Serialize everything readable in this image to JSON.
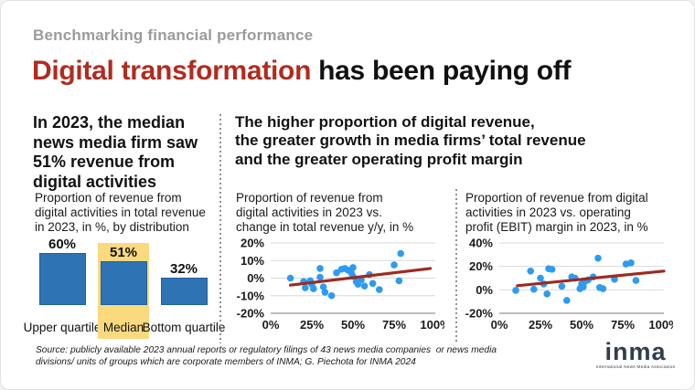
{
  "page": {
    "kicker": "Benchmarking financial performance",
    "title_highlight": "Digital transformation",
    "title_rest": " has been paying off",
    "source": "Source: publicly available 2023 annual reports or regulatory filings of 43 news media companies  or news media\ndivisions/ units of groups which are corporate members of INMA; G. Piechota for INMA 2024"
  },
  "left_panel": {
    "heading": "In 2023, the median\nnews media firm saw\n51% revenue from\ndigital activities",
    "chart_title": "Proportion of revenue from\ndigital activities in total revenue\nin 2023, in %, by distribution"
  },
  "right_panel": {
    "heading": "The higher proportion of digital revenue,\nthe greater growth in media firms’ total revenue\nand the greater operating profit margin",
    "middle_chart_title": "Proportion of revenue from\ndigital activities in 2023 vs.\nchange in total revenue y/y, in %",
    "right_chart_title": "Proportion of revenue from digital\nactivities in 2023 vs. operating\nprofit (EBIT) margin in 2023, in %"
  },
  "logo": {
    "name": "inma",
    "tagline": "International News Media Association"
  },
  "colors": {
    "title_accent": "#b22b1f",
    "kicker_gray": "#9b9b9b",
    "bar_fill": "#2e74b5",
    "bar_border": "#1e5fa3",
    "highlight_yellow": "#fbd97e",
    "dot_blue": "#2d9bf0",
    "trend_red": "#9e2a20",
    "grid_gray": "#d9d9d9",
    "axis_gray": "#a6a6a6",
    "logo_navy": "#333d4d"
  },
  "chart_data": [
    {
      "type": "bar",
      "title": "Proportion of revenue from digital activities in total revenue in 2023, in %, by distribution",
      "categories": [
        "Upper quartile",
        "Median",
        "Bottom quartile"
      ],
      "values": [
        60,
        51,
        32
      ],
      "value_labels": [
        "60%",
        "51%",
        "32%"
      ],
      "highlight_category": "Median",
      "ylim": [
        0,
        65
      ]
    },
    {
      "type": "scatter",
      "title": "Proportion of revenue from digital activities in 2023 vs. change in total revenue y/y, in %",
      "xlim": [
        0,
        100
      ],
      "ylim": [
        -20,
        20
      ],
      "xticks": [
        0,
        25,
        50,
        75,
        100
      ],
      "yticks": [
        20,
        10,
        0,
        -10,
        -20
      ],
      "points": [
        [
          12,
          0
        ],
        [
          20,
          -2
        ],
        [
          21,
          -5.5
        ],
        [
          24,
          -1.5
        ],
        [
          25,
          -3.5
        ],
        [
          26,
          -6
        ],
        [
          30,
          5.5
        ],
        [
          30,
          0.5
        ],
        [
          32,
          -5
        ],
        [
          33,
          -8
        ],
        [
          37,
          -10
        ],
        [
          40,
          3
        ],
        [
          43,
          5
        ],
        [
          45,
          5.5
        ],
        [
          47,
          4.5
        ],
        [
          49,
          3
        ],
        [
          50,
          6
        ],
        [
          50,
          1
        ],
        [
          52,
          -2
        ],
        [
          53,
          -3.5
        ],
        [
          55,
          -1
        ],
        [
          57,
          -4.5
        ],
        [
          60,
          2
        ],
        [
          62,
          -3
        ],
        [
          66,
          -6.5
        ],
        [
          75,
          7.5
        ],
        [
          78,
          -1.5
        ],
        [
          79,
          14
        ]
      ],
      "trend": {
        "x1": 12,
        "y1": -4,
        "x2": 97,
        "y2": 5.5
      },
      "legend": "none",
      "grid": "horizontal"
    },
    {
      "type": "scatter",
      "title": "Proportion of revenue from digital activities in 2023 vs. operating profit (EBIT) margin in 2023, in %",
      "xlim": [
        0,
        100
      ],
      "ylim": [
        -20,
        40
      ],
      "xticks": [
        0,
        25,
        50,
        75,
        100
      ],
      "yticks": [
        40,
        20,
        0,
        -20
      ],
      "points": [
        [
          10,
          -0.5
        ],
        [
          19,
          16
        ],
        [
          21,
          0.5
        ],
        [
          25,
          10
        ],
        [
          27,
          5
        ],
        [
          29,
          -3.5
        ],
        [
          30,
          18
        ],
        [
          32,
          17.5
        ],
        [
          38,
          3
        ],
        [
          41,
          -9
        ],
        [
          44,
          11
        ],
        [
          46,
          10
        ],
        [
          49,
          1
        ],
        [
          50,
          5
        ],
        [
          51,
          2.5
        ],
        [
          52,
          7
        ],
        [
          54,
          8.5
        ],
        [
          57,
          11
        ],
        [
          60,
          27
        ],
        [
          61,
          2
        ],
        [
          63,
          1
        ],
        [
          70,
          9
        ],
        [
          77,
          22
        ],
        [
          80,
          23
        ],
        [
          83,
          8
        ]
      ],
      "trend": {
        "x1": 11,
        "y1": 3.5,
        "x2": 100,
        "y2": 16
      },
      "legend": "none",
      "grid": "horizontal"
    }
  ]
}
